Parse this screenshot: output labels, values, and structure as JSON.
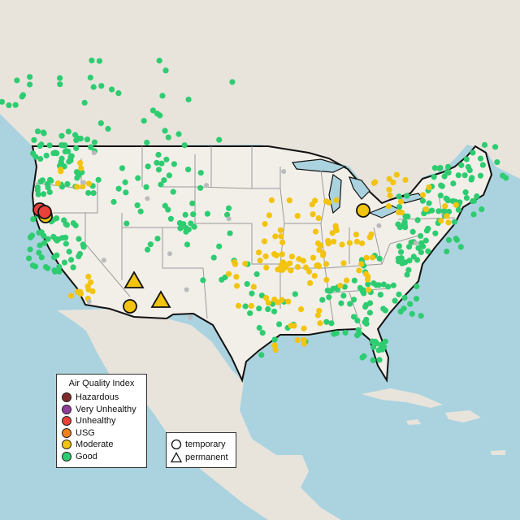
{
  "map": {
    "colors": {
      "water": "#aad3df",
      "land_us": "#f2efe9",
      "land_other": "#e8e4dc",
      "border": "#111111",
      "state_line": "#9a9a9a",
      "no_data": "#bbbbbb"
    }
  },
  "legend_aqi": {
    "title": "Air Quality Index",
    "items": [
      {
        "label": "Hazardous",
        "color": "#7e2b2b"
      },
      {
        "label": "Very Unhealthy",
        "color": "#8f3f97"
      },
      {
        "label": "Unhealthy",
        "color": "#e8413a"
      },
      {
        "label": "USG",
        "color": "#f0821e"
      },
      {
        "label": "Moderate",
        "color": "#f2c40f"
      },
      {
        "label": "Good",
        "color": "#2ecc71"
      }
    ]
  },
  "legend_type": {
    "items": [
      {
        "label": "temporary",
        "shape": "circle-icon"
      },
      {
        "label": "permanent",
        "shape": "triangle-icon"
      }
    ]
  }
}
